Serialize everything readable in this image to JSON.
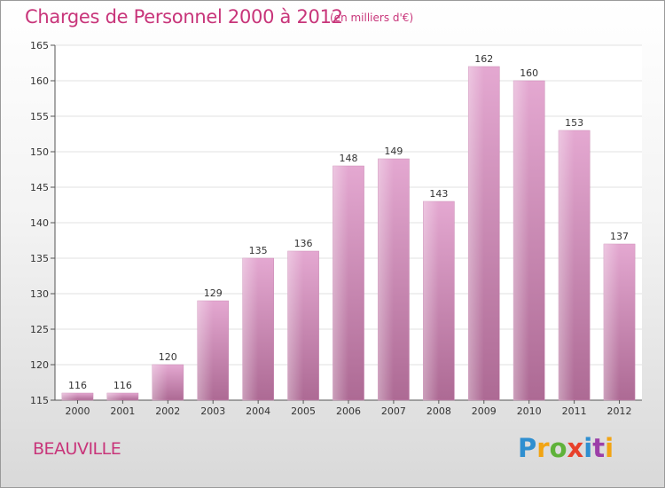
{
  "header": {
    "title": "Charges de Personnel 2000 à 2012",
    "subtitle": "(en milliers d'€)"
  },
  "footer": {
    "city": "BEAUVILLE",
    "logo": [
      "P",
      "r",
      "o",
      "x",
      "i",
      "t",
      "i"
    ]
  },
  "colors": {
    "title": "#c8357a",
    "bar_light": "#e4a8d1",
    "bar_dark": "#ad6a94",
    "grid": "#e2e2e2"
  },
  "chart_data": {
    "type": "bar",
    "title": "Charges de Personnel 2000 à 2012",
    "subtitle": "(en milliers d'€)",
    "categories": [
      "2000",
      "2001",
      "2002",
      "2003",
      "2004",
      "2005",
      "2006",
      "2007",
      "2008",
      "2009",
      "2010",
      "2011",
      "2012"
    ],
    "values": [
      116,
      116,
      120,
      129,
      135,
      136,
      148,
      149,
      143,
      162,
      160,
      153,
      137
    ],
    "ylim": [
      115,
      165
    ],
    "yticks": [
      115,
      120,
      125,
      130,
      135,
      140,
      145,
      150,
      155,
      160,
      165
    ],
    "grid": true,
    "legend": "none"
  }
}
